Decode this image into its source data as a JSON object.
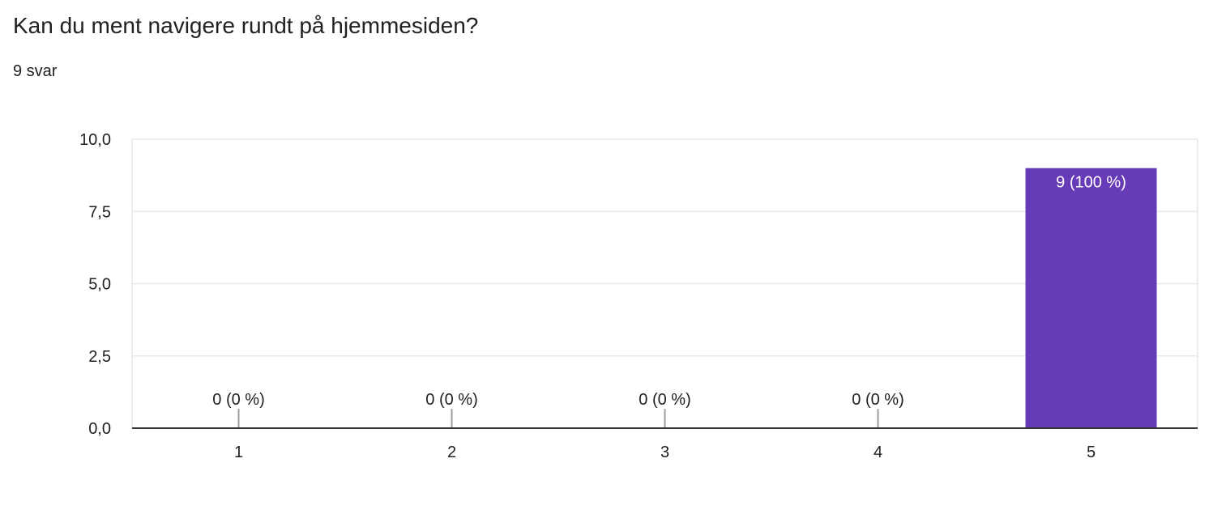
{
  "question": {
    "title": "Kan du ment navigere rundt på hjemmesiden?",
    "response_count": "9 svar"
  },
  "colors": {
    "bar": "#673ab7",
    "grid": "#e8e8e8",
    "axis": "#333333",
    "text": "#202124"
  },
  "chart_data": {
    "type": "bar",
    "title": "",
    "xlabel": "",
    "ylabel": "",
    "categories": [
      "1",
      "2",
      "3",
      "4",
      "5"
    ],
    "values": [
      0,
      0,
      0,
      0,
      9
    ],
    "data_labels": [
      "0 (0 %)",
      "0 (0 %)",
      "0 (0 %)",
      "0 (0 %)",
      "9 (100 %)"
    ],
    "ylim": [
      0,
      10
    ],
    "y_ticks": [
      0,
      2.5,
      5,
      7.5,
      10
    ],
    "y_tick_labels": [
      "0,0",
      "2,5",
      "5,0",
      "7,5",
      "10,0"
    ],
    "grid": true,
    "legend": "none"
  }
}
